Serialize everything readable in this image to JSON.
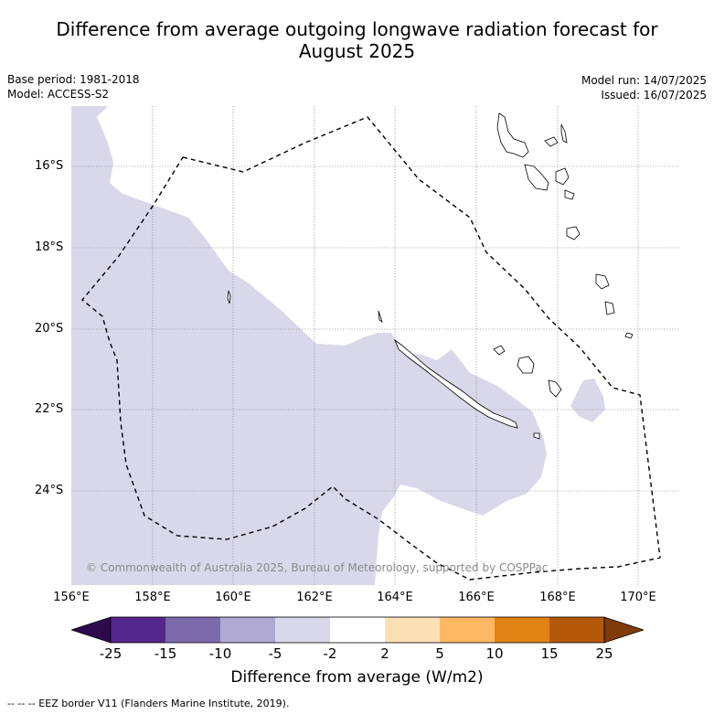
{
  "title_line1": "Difference from average outgoing longwave radiation forecast for",
  "title_line2": "August 2025",
  "base_period": "Base period: 1981-2018",
  "model": "Model: ACCESS-S2",
  "model_run": "Model run: 14/07/2025",
  "issued": "Issued: 16/07/2025",
  "copyright": "© Commonwealth of Australia 2025, Bureau of Meteorology, supported by COSPPac",
  "lat_labels": [
    "16°S",
    "18°S",
    "20°S",
    "22°S",
    "24°S"
  ],
  "lon_labels": [
    "156°E",
    "158°E",
    "160°E",
    "162°E",
    "164°E",
    "166°E",
    "168°E",
    "170°E"
  ],
  "colorbar": {
    "labels": [
      "-25",
      "-15",
      "-10",
      "-5",
      "-2",
      "2",
      "5",
      "10",
      "15",
      "25"
    ],
    "title": "Difference from average (W/m2)",
    "colors": [
      "#2d0a4e",
      "#54278f",
      "#7b6bac",
      "#aea8d3",
      "#d8d8ea",
      "#ffffff",
      "#fee0b6",
      "#fdb863",
      "#e08214",
      "#b35806",
      "#7f3b08"
    ]
  },
  "footnote": "--  --  -- EEZ border V11 (Flanders Marine Institute, 2019).",
  "map": {
    "lat_range": [
      -26.0,
      -14.5
    ],
    "lon_range": [
      156.0,
      171.0
    ],
    "anomaly_fill_color": "#d8d8ea",
    "anomaly_category": "-5 to -2"
  }
}
